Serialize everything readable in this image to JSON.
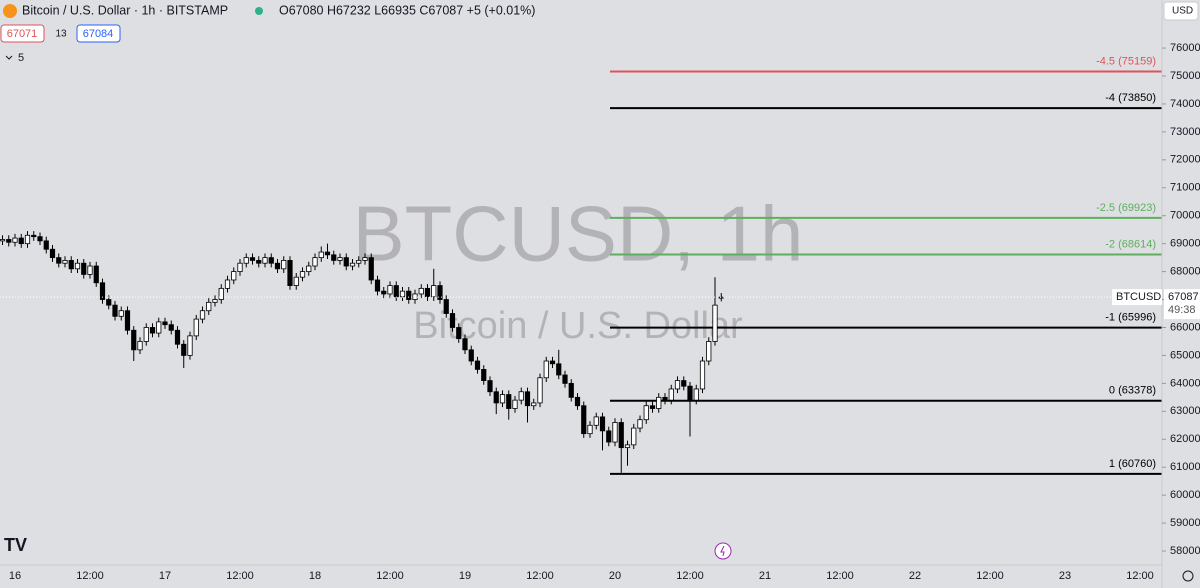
{
  "header": {
    "symbol": "Bitcoin / U.S. Dollar · 1h · BITSTAMP",
    "ohlc_readout": "O67080 H67232 L66935 C67087 +5 (+0.01%)",
    "sell_price": "67071",
    "spread": "13",
    "buy_price": "67084",
    "indicators_count": "5",
    "currency": "USD"
  },
  "chart_data": {
    "type": "candlestick",
    "watermark": "BTCUSD, 1h",
    "watermark_sub": "Bitcoin / U.S. Dollar",
    "up_color": "#ffffff",
    "down_color": "#000000",
    "ylim": [
      57500,
      77720
    ],
    "yticks": [
      58000,
      59000,
      60000,
      61000,
      62000,
      63000,
      64000,
      65000,
      66000,
      67000,
      68000,
      69000,
      70000,
      71000,
      72000,
      73000,
      74000,
      75000,
      76000
    ],
    "time_labels": [
      "16",
      "12:00",
      "17",
      "12:00",
      "18",
      "12:00",
      "19",
      "12:00",
      "20",
      "12:00",
      "21",
      "12:00",
      "22",
      "12:00",
      "23",
      "12:00"
    ],
    "last_price": {
      "symbol": "BTCUSD",
      "value": 67087,
      "countdown": "49:38"
    },
    "fib_levels": [
      {
        "value": 75159,
        "label": "-4.5 (75159)",
        "color": "#e0525a"
      },
      {
        "value": 73850,
        "label": "-4 (73850)",
        "color": "#000000"
      },
      {
        "value": 69923,
        "label": "-2.5 (69923)",
        "color": "#5fae5f"
      },
      {
        "value": 68614,
        "label": "-2 (68614)",
        "color": "#5fae5f"
      },
      {
        "value": 65996,
        "label": "-1 (65996)",
        "color": "#000000"
      },
      {
        "value": 63378,
        "label": "0 (63378)",
        "color": "#000000"
      },
      {
        "value": 60760,
        "label": "1 (60760)",
        "color": "#000000"
      }
    ],
    "candles": [
      [
        69100,
        69300,
        68950,
        69150
      ],
      [
        69150,
        69300,
        68900,
        69050
      ],
      [
        69050,
        69350,
        68900,
        69200
      ],
      [
        69200,
        69350,
        68850,
        69000
      ],
      [
        69000,
        69450,
        68850,
        69300
      ],
      [
        69300,
        69450,
        69100,
        69250
      ],
      [
        69250,
        69400,
        68950,
        69100
      ],
      [
        69100,
        69250,
        68650,
        68800
      ],
      [
        68800,
        68950,
        68350,
        68500
      ],
      [
        68500,
        68650,
        68150,
        68300
      ],
      [
        68300,
        68550,
        68150,
        68400
      ],
      [
        68400,
        68550,
        67950,
        68100
      ],
      [
        68100,
        68450,
        67950,
        68300
      ],
      [
        68300,
        68450,
        67750,
        67900
      ],
      [
        67900,
        68350,
        67750,
        68200
      ],
      [
        68200,
        68350,
        67450,
        67600
      ],
      [
        67600,
        67750,
        66850,
        67000
      ],
      [
        67000,
        67150,
        66650,
        66800
      ],
      [
        66800,
        66950,
        66250,
        66400
      ],
      [
        66400,
        66750,
        66250,
        66600
      ],
      [
        66600,
        66750,
        65750,
        65900
      ],
      [
        65900,
        66050,
        64800,
        65200
      ],
      [
        65200,
        65650,
        65050,
        65500
      ],
      [
        65500,
        66150,
        65350,
        66000
      ],
      [
        66000,
        66150,
        65650,
        65800
      ],
      [
        65800,
        66350,
        65650,
        66200
      ],
      [
        66200,
        66350,
        65950,
        66100
      ],
      [
        66100,
        66250,
        65750,
        65900
      ],
      [
        65900,
        66050,
        65250,
        65400
      ],
      [
        65400,
        65550,
        64550,
        65000
      ],
      [
        65000,
        65850,
        64850,
        65700
      ],
      [
        65700,
        66450,
        65550,
        66300
      ],
      [
        66300,
        66750,
        66150,
        66600
      ],
      [
        66600,
        67050,
        66450,
        66900
      ],
      [
        66900,
        67150,
        66750,
        67000
      ],
      [
        67000,
        67550,
        66850,
        67400
      ],
      [
        67400,
        67850,
        67250,
        67700
      ],
      [
        67700,
        68150,
        67550,
        68000
      ],
      [
        68000,
        68450,
        67850,
        68300
      ],
      [
        68300,
        68650,
        68150,
        68500
      ],
      [
        68500,
        68650,
        68250,
        68400
      ],
      [
        68400,
        68550,
        68150,
        68300
      ],
      [
        68300,
        68650,
        68150,
        68500
      ],
      [
        68500,
        68650,
        68150,
        68300
      ],
      [
        68300,
        68450,
        67950,
        68100
      ],
      [
        68100,
        68550,
        67950,
        68400
      ],
      [
        68400,
        68550,
        67350,
        67500
      ],
      [
        67500,
        67950,
        67350,
        67800
      ],
      [
        67800,
        68150,
        67650,
        68000
      ],
      [
        68000,
        68350,
        67850,
        68200
      ],
      [
        68200,
        68650,
        68050,
        68500
      ],
      [
        68500,
        68900,
        68350,
        68700
      ],
      [
        68700,
        69000,
        68450,
        68600
      ],
      [
        68600,
        68750,
        68250,
        68400
      ],
      [
        68400,
        68650,
        68250,
        68500
      ],
      [
        68500,
        68650,
        68050,
        68200
      ],
      [
        68200,
        68450,
        68050,
        68300
      ],
      [
        68300,
        68550,
        68150,
        68400
      ],
      [
        68400,
        68650,
        68250,
        68500
      ],
      [
        68500,
        68650,
        67550,
        67700
      ],
      [
        67700,
        67850,
        67150,
        67300
      ],
      [
        67300,
        67450,
        67050,
        67200
      ],
      [
        67200,
        67650,
        67050,
        67500
      ],
      [
        67500,
        67650,
        66950,
        67100
      ],
      [
        67100,
        67450,
        66950,
        67300
      ],
      [
        67300,
        67450,
        66850,
        67000
      ],
      [
        67000,
        67350,
        66850,
        67200
      ],
      [
        67200,
        67550,
        67050,
        67400
      ],
      [
        67400,
        67550,
        66950,
        67100
      ],
      [
        67100,
        68100,
        66950,
        67500
      ],
      [
        67500,
        67650,
        66850,
        67000
      ],
      [
        67000,
        67150,
        66350,
        66500
      ],
      [
        66500,
        66650,
        65850,
        66000
      ],
      [
        66000,
        66150,
        65450,
        65600
      ],
      [
        65600,
        65750,
        65050,
        65200
      ],
      [
        65200,
        65350,
        64650,
        64800
      ],
      [
        64800,
        64950,
        64350,
        64500
      ],
      [
        64500,
        64650,
        63950,
        64100
      ],
      [
        64100,
        64250,
        63550,
        63700
      ],
      [
        63700,
        63850,
        62900,
        63300
      ],
      [
        63300,
        63750,
        63150,
        63600
      ],
      [
        63600,
        63750,
        62700,
        63100
      ],
      [
        63100,
        63550,
        62950,
        63400
      ],
      [
        63400,
        63850,
        63250,
        63700
      ],
      [
        63700,
        63850,
        62600,
        63200
      ],
      [
        63200,
        63450,
        63050,
        63300
      ],
      [
        63300,
        64350,
        63150,
        64200
      ],
      [
        64200,
        64950,
        64050,
        64800
      ],
      [
        64800,
        64950,
        64550,
        64700
      ],
      [
        64700,
        65200,
        64150,
        64300
      ],
      [
        64300,
        64450,
        63850,
        64000
      ],
      [
        64000,
        64150,
        63350,
        63500
      ],
      [
        63500,
        63650,
        63050,
        63200
      ],
      [
        63200,
        63350,
        62050,
        62200
      ],
      [
        62200,
        62650,
        62050,
        62500
      ],
      [
        62500,
        62950,
        62350,
        62800
      ],
      [
        62800,
        62950,
        61600,
        62300
      ],
      [
        62300,
        62450,
        61750,
        61900
      ],
      [
        61900,
        62750,
        61750,
        62600
      ],
      [
        62600,
        62750,
        60800,
        61700
      ],
      [
        61700,
        61950,
        61050,
        61800
      ],
      [
        61800,
        62550,
        61650,
        62400
      ],
      [
        62400,
        62850,
        62250,
        62700
      ],
      [
        62700,
        63350,
        62550,
        63200
      ],
      [
        63200,
        63350,
        62950,
        63100
      ],
      [
        63100,
        63650,
        62950,
        63500
      ],
      [
        63500,
        63650,
        63250,
        63400
      ],
      [
        63400,
        63950,
        63250,
        63800
      ],
      [
        63800,
        64250,
        63650,
        64100
      ],
      [
        64100,
        64250,
        63750,
        63900
      ],
      [
        63900,
        64050,
        62100,
        63400
      ],
      [
        63400,
        63950,
        63250,
        63800
      ],
      [
        63800,
        64950,
        63650,
        64800
      ],
      [
        64800,
        65650,
        64650,
        65500
      ],
      [
        65500,
        67800,
        65350,
        66800
      ],
      [
        67080,
        67232,
        66935,
        67087
      ]
    ]
  }
}
